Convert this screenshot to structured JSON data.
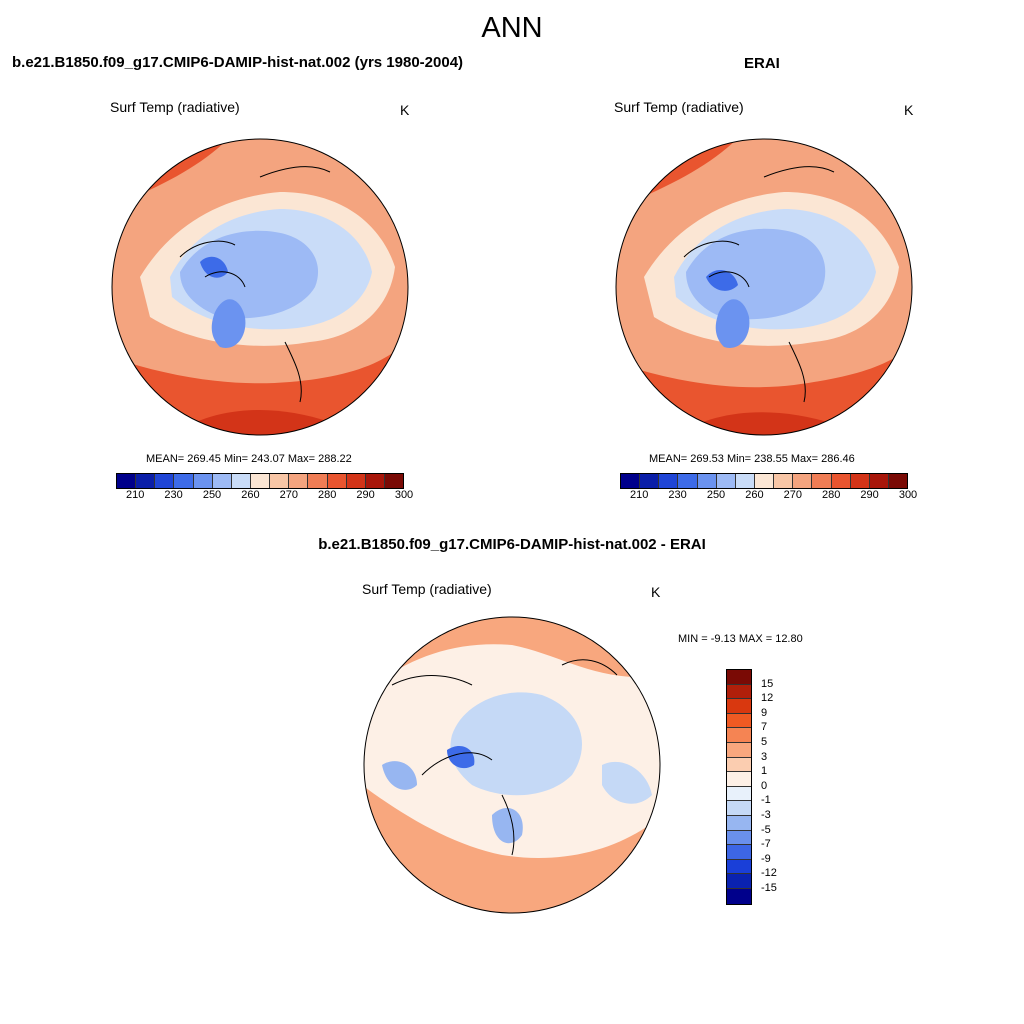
{
  "title": "ANN",
  "panels": [
    {
      "heading": "b.e21.B1850.f09_g17.CMIP6-DAMIP-hist-nat.002 (yrs 1980-2004)",
      "variable": "Surf Temp (radiative)",
      "units": "K",
      "stats": "MEAN= 269.45  Min= 243.07  Max= 288.22",
      "colorbar": {
        "tick_labels": [
          "210",
          "230",
          "250",
          "260",
          "270",
          "280",
          "290",
          "300"
        ],
        "colors": [
          "#00008b",
          "#0a1ea8",
          "#1f45d6",
          "#3d6be8",
          "#6b93f0",
          "#9dbaf5",
          "#c9dcf8",
          "#fbe6d4",
          "#f8c6a6",
          "#f4a47f",
          "#f07d55",
          "#e9552f",
          "#d33418",
          "#a8160a",
          "#7a0a05"
        ]
      }
    },
    {
      "heading": "ERAI",
      "variable": "Surf Temp (radiative)",
      "units": "K",
      "stats": "MEAN= 269.53  Min= 238.55  Max= 286.46",
      "colorbar": {
        "tick_labels": [
          "210",
          "230",
          "250",
          "260",
          "270",
          "280",
          "290",
          "300"
        ],
        "colors": [
          "#00008b",
          "#0a1ea8",
          "#1f45d6",
          "#3d6be8",
          "#6b93f0",
          "#9dbaf5",
          "#c9dcf8",
          "#fbe6d4",
          "#f8c6a6",
          "#f4a47f",
          "#f07d55",
          "#e9552f",
          "#d33418",
          "#a8160a",
          "#7a0a05"
        ]
      }
    },
    {
      "heading": "b.e21.B1850.f09_g17.CMIP6-DAMIP-hist-nat.002 - ERAI",
      "variable": "Surf Temp (radiative)",
      "units": "K",
      "stats": "MIN =  -9.13 MAX =  12.80",
      "colorbar": {
        "tick_labels": [
          "15",
          "12",
          "9",
          "7",
          "5",
          "3",
          "1",
          "0",
          "-1",
          "-3",
          "-5",
          "-7",
          "-9",
          "-12",
          "-15"
        ],
        "colors": [
          "#7a0a05",
          "#b01f0a",
          "#d9380f",
          "#f05a23",
          "#f58453",
          "#f8a77e",
          "#fbcdb0",
          "#fdf0e6",
          "#e8f1fb",
          "#c5d9f6",
          "#97b6f1",
          "#6a90ec",
          "#3d66e5",
          "#1a3fd8",
          "#0a22b0",
          "#00008b"
        ]
      }
    }
  ],
  "map_colors": {
    "ocean_warm": "#f4a47f",
    "warm_deep": "#e9552f",
    "hot": "#d33418",
    "cool": "#c9dcf8",
    "cold": "#9dbaf5",
    "colder": "#6b93f0",
    "coldest": "#3d6be8",
    "mild": "#fbe6d4",
    "diff_neutral": "#fdf0e6",
    "diff_warm": "#f8a77e",
    "diff_cool": "#c5d9f6",
    "diff_cold": "#97b6f1"
  }
}
